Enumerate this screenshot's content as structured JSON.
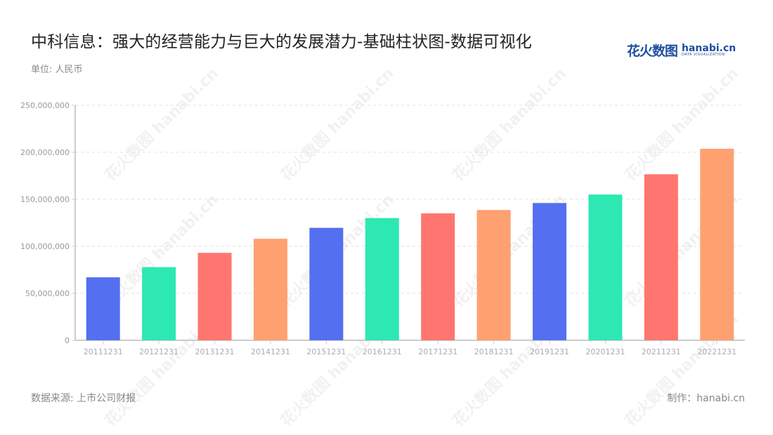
{
  "header": {
    "title": "中科信息：强大的经营能力与巨大的发展潜力-基础柱状图-数据可视化",
    "unit": "单位: 人民币"
  },
  "logo": {
    "cn": "花火数图",
    "en": "hanabi.cn",
    "en_sub": "DATA VISUALIZATION"
  },
  "watermark": {
    "text": "花火数图 hanabi.cn"
  },
  "footer": {
    "source": "数据来源: 上市公司财报",
    "credit": "制作：hanabi.cn"
  },
  "colors": {
    "palette": [
      "#5470f0",
      "#2de8b2",
      "#ff7670",
      "#ffa070"
    ],
    "axis": "#cccccc",
    "grid": "#e0e0e0"
  },
  "chart_data": {
    "type": "bar",
    "title": "中科信息：强大的经营能力与巨大的发展潜力-基础柱状图-数据可视化",
    "subtitle": "单位: 人民币",
    "xlabel": "",
    "ylabel": "",
    "categories": [
      "20111231",
      "20121231",
      "20131231",
      "20141231",
      "20151231",
      "20161231",
      "20171231",
      "20181231",
      "20191231",
      "20201231",
      "20211231",
      "20221231"
    ],
    "values": [
      67000000,
      77800000,
      93000000,
      108000000,
      119600000,
      130000000,
      135000000,
      138600000,
      146000000,
      155000000,
      176600000,
      203700000
    ],
    "ylim": [
      0,
      250000000
    ],
    "yticks": [
      0,
      50000000,
      100000000,
      150000000,
      200000000,
      250000000
    ],
    "ytick_labels": [
      "0",
      "50,000,000",
      "100,000,000",
      "150,000,000",
      "200,000,000",
      "250,000,000"
    ],
    "grid": true,
    "grid_style": "dashed",
    "legend": "none",
    "bar_colors_cycle": [
      "#5470f0",
      "#2de8b2",
      "#ff7670",
      "#ffa070"
    ]
  }
}
